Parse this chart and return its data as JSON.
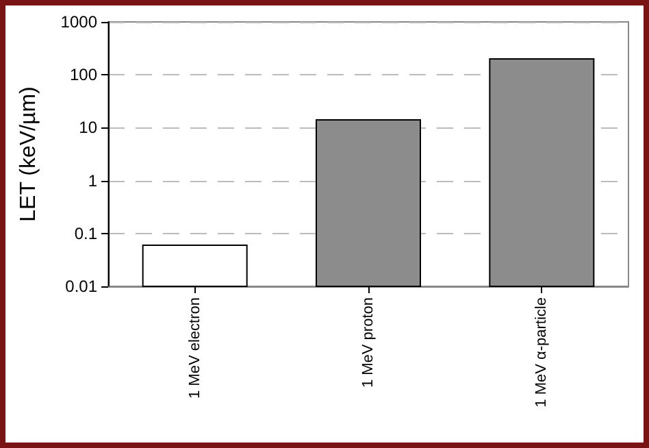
{
  "chart_data": {
    "type": "bar",
    "ylabel": "LET (keV/µm)",
    "categories": [
      "1 MeV electron",
      "1 MeV proton",
      "1 MeV α-particle"
    ],
    "values": [
      0.06,
      14,
      200
    ],
    "colors": [
      "#ffffff",
      "#8c8c8c",
      "#8c8c8c"
    ],
    "log": true,
    "ylim": [
      0.01,
      1000
    ],
    "yticks": [
      0.01,
      0.1,
      1,
      10,
      100,
      1000
    ],
    "grid": "y"
  }
}
